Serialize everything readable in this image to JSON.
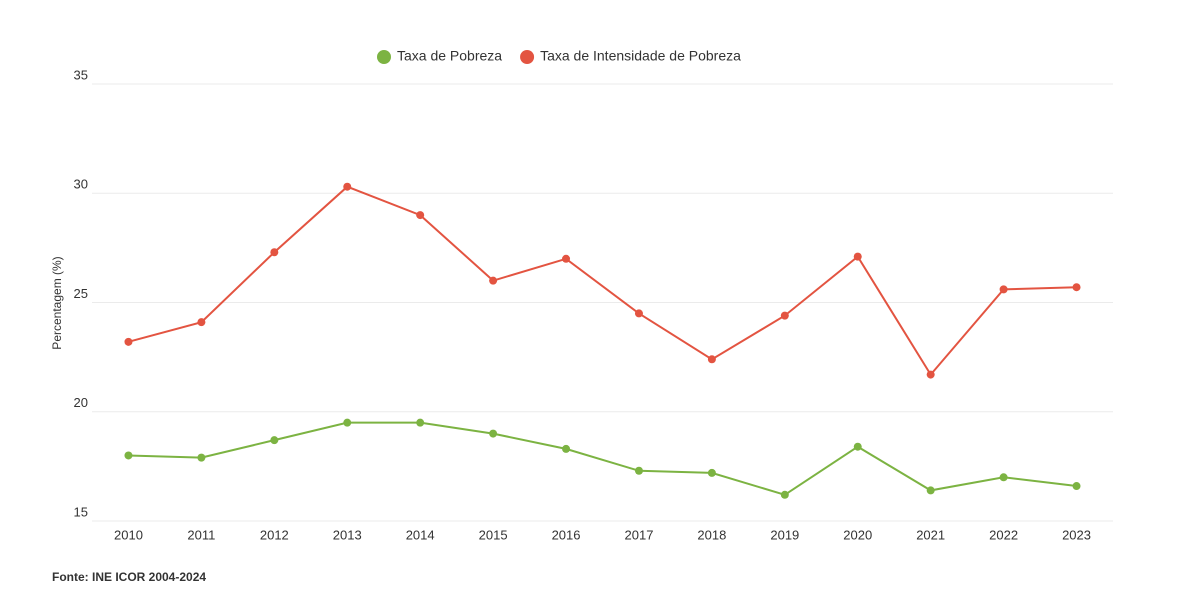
{
  "chart_data": {
    "type": "line",
    "y_label": "Percentagem (%)",
    "source": "Fonte: INE ICOR 2004-2024",
    "categories": [
      "2010",
      "2011",
      "2012",
      "2013",
      "2014",
      "2015",
      "2016",
      "2017",
      "2018",
      "2019",
      "2020",
      "2021",
      "2022",
      "2023"
    ],
    "series": [
      {
        "name": "Taxa de Pobreza",
        "color": "#7cb342",
        "values": [
          18.0,
          17.9,
          18.7,
          19.5,
          19.5,
          19.0,
          18.3,
          17.3,
          17.2,
          16.2,
          18.4,
          16.4,
          17.0,
          16.6
        ]
      },
      {
        "name": "Taxa de Intensidade de Pobreza",
        "color": "#e35441",
        "values": [
          23.2,
          24.1,
          27.3,
          30.3,
          29.0,
          26.0,
          27.0,
          24.5,
          22.4,
          24.4,
          27.1,
          21.7,
          25.6,
          25.7
        ]
      }
    ],
    "ylim": [
      15,
      35
    ],
    "yticks": [
      15,
      20,
      25,
      30,
      35
    ],
    "grid": true,
    "legend": "top"
  }
}
